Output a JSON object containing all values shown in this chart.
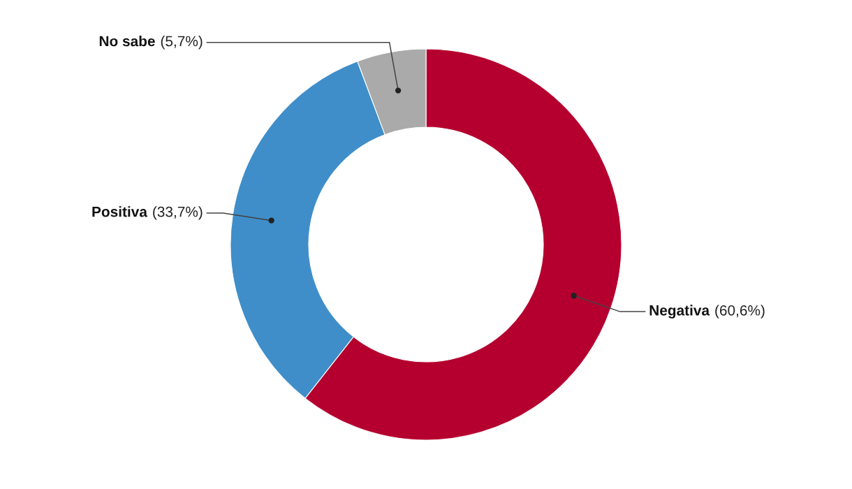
{
  "chart_data": {
    "type": "donut",
    "categories": [
      "Negativa",
      "Positiva",
      "No sabe"
    ],
    "values": [
      60.6,
      33.7,
      5.7
    ],
    "value_labels": [
      "(60,6%)",
      "(33,7%)",
      "(5,7%)"
    ],
    "colors": [
      "#b5002f",
      "#3f8ec9",
      "#aaaaaa"
    ]
  }
}
